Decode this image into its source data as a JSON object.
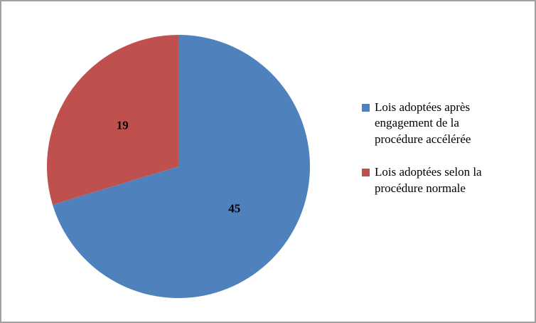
{
  "chart_data": {
    "type": "pie",
    "title": "",
    "legend_position": "right",
    "start_angle_deg": 0,
    "direction": "clockwise",
    "total": 64,
    "slices": [
      {
        "label": "Lois adoptées après engagement de la procédure accélérée",
        "value": 45,
        "color": "#4F81BD"
      },
      {
        "label": "Lois adoptées selon la procédure normale",
        "value": 19,
        "color": "#C0504D"
      }
    ]
  },
  "frame": {
    "border_color": "#a0a0a0",
    "background_color": "#ffffff"
  }
}
